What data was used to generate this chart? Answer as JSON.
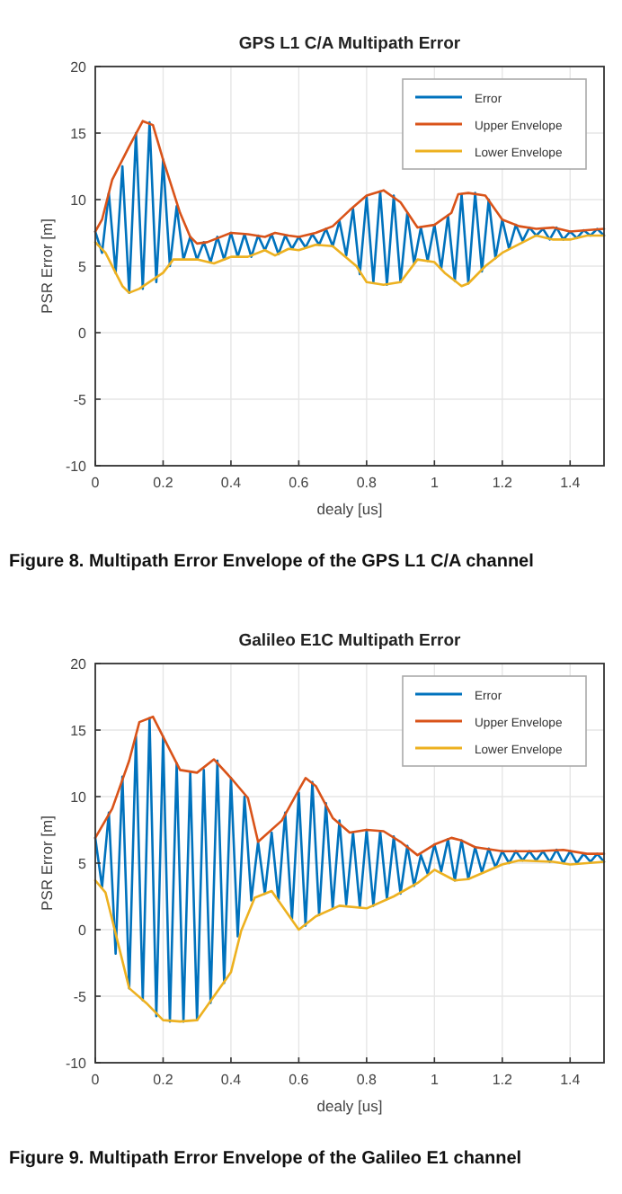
{
  "chart_data": [
    {
      "type": "line",
      "title": "GPS L1 C/A Multipath Error",
      "xlabel": "dealy [us]",
      "ylabel": "PSR Error [m]",
      "xlim": [
        0,
        1.5
      ],
      "xticks": [
        0,
        0.2,
        0.4,
        0.6,
        0.8,
        1,
        1.2,
        1.4
      ],
      "ylim": [
        -10,
        20
      ],
      "yticks": [
        -10,
        -5,
        0,
        5,
        10,
        15,
        20
      ],
      "grid": true,
      "legend": "top right",
      "marker": "none",
      "line_style": "solid",
      "annotations": [
        "Figure 8. Multipath Error Envelope of the GPS L1 C/A channel"
      ],
      "series": [
        {
          "name": "Error",
          "color": "#0072bd",
          "x": [
            0,
            0.02,
            0.04,
            0.06,
            0.08,
            0.1,
            0.12,
            0.14,
            0.16,
            0.18,
            0.2,
            0.22,
            0.24,
            0.26,
            0.28,
            0.3,
            0.32,
            0.34,
            0.36,
            0.38,
            0.4,
            0.42,
            0.44,
            0.46,
            0.48,
            0.5,
            0.52,
            0.54,
            0.56,
            0.58,
            0.6,
            0.62,
            0.64,
            0.66,
            0.68,
            0.7,
            0.72,
            0.74,
            0.76,
            0.78,
            0.8,
            0.82,
            0.84,
            0.86,
            0.88,
            0.9,
            0.92,
            0.94,
            0.96,
            0.98,
            1,
            1.02,
            1.04,
            1.06,
            1.08,
            1.1,
            1.12,
            1.14,
            1.16,
            1.18,
            1.2,
            1.22,
            1.24,
            1.26,
            1.28,
            1.3,
            1.32,
            1.34,
            1.36,
            1.38,
            1.4,
            1.42,
            1.44,
            1.46,
            1.48,
            1.5
          ],
          "values": [
            7.6,
            6.0,
            10.5,
            4.5,
            12.5,
            3.0,
            15,
            3.3,
            15.8,
            3.8,
            13,
            5,
            9.5,
            5.5,
            7.2,
            5.5,
            6.8,
            5.3,
            7.2,
            5.5,
            7.5,
            5.7,
            7.4,
            5.7,
            7.3,
            6.2,
            7.4,
            5.9,
            7.3,
            6.3,
            7.2,
            6.4,
            7.4,
            6.6,
            7.8,
            6.5,
            8.4,
            5.8,
            9.3,
            4.4,
            10.2,
            3.8,
            10.6,
            3.6,
            10.3,
            3.8,
            9,
            5.2,
            7.9,
            5.4,
            8.1,
            4.8,
            8.8,
            3.9,
            10.4,
            3.7,
            10.5,
            4.6,
            10,
            5.6,
            8.5,
            6.3,
            8.1,
            6.9,
            7.9,
            7.3,
            7.8,
            7.0,
            7.9,
            7.0,
            7.6,
            7.1,
            7.7,
            7.3,
            7.8,
            7.3
          ]
        },
        {
          "name": "Upper Envelope",
          "color": "#d95319",
          "x": [
            0,
            0.02,
            0.05,
            0.1,
            0.14,
            0.17,
            0.2,
            0.25,
            0.28,
            0.3,
            0.33,
            0.4,
            0.45,
            0.5,
            0.53,
            0.57,
            0.6,
            0.65,
            0.7,
            0.75,
            0.8,
            0.85,
            0.9,
            0.95,
            1,
            1.05,
            1.07,
            1.1,
            1.15,
            1.2,
            1.25,
            1.3,
            1.35,
            1.4,
            1.5
          ],
          "values": [
            7.6,
            8.5,
            11.5,
            14,
            15.9,
            15.6,
            13,
            9,
            7.2,
            6.7,
            6.8,
            7.5,
            7.4,
            7.2,
            7.5,
            7.3,
            7.2,
            7.5,
            8,
            9.2,
            10.3,
            10.7,
            9.8,
            7.9,
            8.1,
            9,
            10.4,
            10.5,
            10.3,
            8.5,
            8,
            7.8,
            7.9,
            7.6,
            7.8
          ]
        },
        {
          "name": "Lower Envelope",
          "color": "#edb120",
          "x": [
            0,
            0.03,
            0.06,
            0.08,
            0.1,
            0.13,
            0.2,
            0.23,
            0.3,
            0.35,
            0.4,
            0.45,
            0.5,
            0.53,
            0.57,
            0.6,
            0.65,
            0.7,
            0.77,
            0.8,
            0.85,
            0.9,
            0.95,
            1,
            1.03,
            1.08,
            1.1,
            1.15,
            1.2,
            1.3,
            1.35,
            1.4,
            1.45,
            1.5
          ],
          "values": [
            6.8,
            6,
            4.5,
            3.5,
            3,
            3.3,
            4.5,
            5.5,
            5.5,
            5.2,
            5.7,
            5.7,
            6.2,
            5.8,
            6.3,
            6.2,
            6.6,
            6.5,
            5,
            3.8,
            3.6,
            3.8,
            5.5,
            5.3,
            4.5,
            3.5,
            3.7,
            5,
            6,
            7.3,
            7,
            7,
            7.3,
            7.3
          ]
        }
      ]
    },
    {
      "type": "line",
      "title": "Galileo E1C Multipath Error",
      "xlabel": "dealy [us]",
      "ylabel": "PSR Error [m]",
      "xlim": [
        0,
        1.5
      ],
      "xticks": [
        0,
        0.2,
        0.4,
        0.6,
        0.8,
        1,
        1.2,
        1.4
      ],
      "ylim": [
        -10,
        20
      ],
      "yticks": [
        -10,
        -5,
        0,
        5,
        10,
        15,
        20
      ],
      "grid": true,
      "legend": "top right",
      "marker": "none",
      "line_style": "solid",
      "annotations": [
        "Figure 9. Multipath Error Envelope of the Galileo E1 channel"
      ],
      "series": [
        {
          "name": "Error",
          "color": "#0072bd",
          "x": [
            0,
            0.02,
            0.04,
            0.06,
            0.08,
            0.1,
            0.12,
            0.14,
            0.16,
            0.18,
            0.2,
            0.22,
            0.24,
            0.26,
            0.28,
            0.3,
            0.32,
            0.34,
            0.36,
            0.38,
            0.4,
            0.42,
            0.44,
            0.46,
            0.48,
            0.5,
            0.52,
            0.54,
            0.56,
            0.58,
            0.6,
            0.62,
            0.64,
            0.66,
            0.68,
            0.7,
            0.72,
            0.74,
            0.76,
            0.78,
            0.8,
            0.82,
            0.84,
            0.86,
            0.88,
            0.9,
            0.92,
            0.94,
            0.96,
            0.98,
            1,
            1.02,
            1.04,
            1.06,
            1.08,
            1.1,
            1.12,
            1.14,
            1.16,
            1.18,
            1.2,
            1.22,
            1.24,
            1.26,
            1.28,
            1.3,
            1.32,
            1.34,
            1.36,
            1.38,
            1.4,
            1.42,
            1.44,
            1.46,
            1.48,
            1.5
          ],
          "values": [
            6.9,
            3.2,
            8.8,
            -1.8,
            11.5,
            -4.4,
            14.5,
            -5.3,
            15.9,
            -6.5,
            14.5,
            -6.9,
            12.5,
            -6.9,
            11.8,
            -6.8,
            12.0,
            -5.5,
            12.7,
            -4.0,
            11.4,
            -0.5,
            10,
            2.2,
            6.6,
            2.7,
            7.3,
            2.2,
            8.8,
            0.8,
            10.3,
            0.3,
            11.1,
            1.1,
            9.5,
            1.6,
            8.2,
            1.9,
            7.3,
            1.7,
            7.5,
            1.8,
            7.4,
            2.3,
            7.0,
            2.7,
            6.3,
            3.3,
            5.6,
            4.2,
            6.4,
            4.4,
            6.8,
            3.7,
            6.7,
            3.8,
            6.2,
            4.3,
            6.1,
            4.7,
            5.9,
            5.0,
            5.9,
            5.2,
            5.9,
            5.2,
            5.9,
            5.1,
            6.0,
            5.0,
            5.9,
            5.0,
            5.7,
            5.1,
            5.7,
            5.1
          ]
        },
        {
          "name": "Upper Envelope",
          "color": "#d95319",
          "x": [
            0,
            0.05,
            0.1,
            0.13,
            0.17,
            0.2,
            0.25,
            0.3,
            0.35,
            0.4,
            0.45,
            0.48,
            0.55,
            0.6,
            0.62,
            0.65,
            0.7,
            0.75,
            0.8,
            0.85,
            0.9,
            0.95,
            1,
            1.05,
            1.08,
            1.12,
            1.2,
            1.3,
            1.38,
            1.45,
            1.5
          ],
          "values": [
            6.9,
            9.1,
            12.7,
            15.6,
            16,
            14.5,
            12,
            11.8,
            12.8,
            11.4,
            9.9,
            6.6,
            8.2,
            10.5,
            11.4,
            10.8,
            8.4,
            7.3,
            7.5,
            7.4,
            6.6,
            5.6,
            6.4,
            6.9,
            6.7,
            6.2,
            5.9,
            5.9,
            6,
            5.7,
            5.7
          ]
        },
        {
          "name": "Lower Envelope",
          "color": "#edb120",
          "x": [
            0,
            0.03,
            0.1,
            0.15,
            0.2,
            0.25,
            0.3,
            0.35,
            0.4,
            0.43,
            0.47,
            0.52,
            0.6,
            0.65,
            0.72,
            0.8,
            0.88,
            0.95,
            1,
            1.06,
            1.1,
            1.2,
            1.25,
            1.35,
            1.4,
            1.5
          ],
          "values": [
            3.7,
            2.8,
            -4.4,
            -5.5,
            -6.8,
            -6.9,
            -6.8,
            -5,
            -3.2,
            -0.1,
            2.4,
            2.9,
            0,
            1,
            1.8,
            1.6,
            2.5,
            3.5,
            4.5,
            3.7,
            3.8,
            4.9,
            5.2,
            5.1,
            4.9,
            5.1
          ]
        }
      ]
    }
  ]
}
